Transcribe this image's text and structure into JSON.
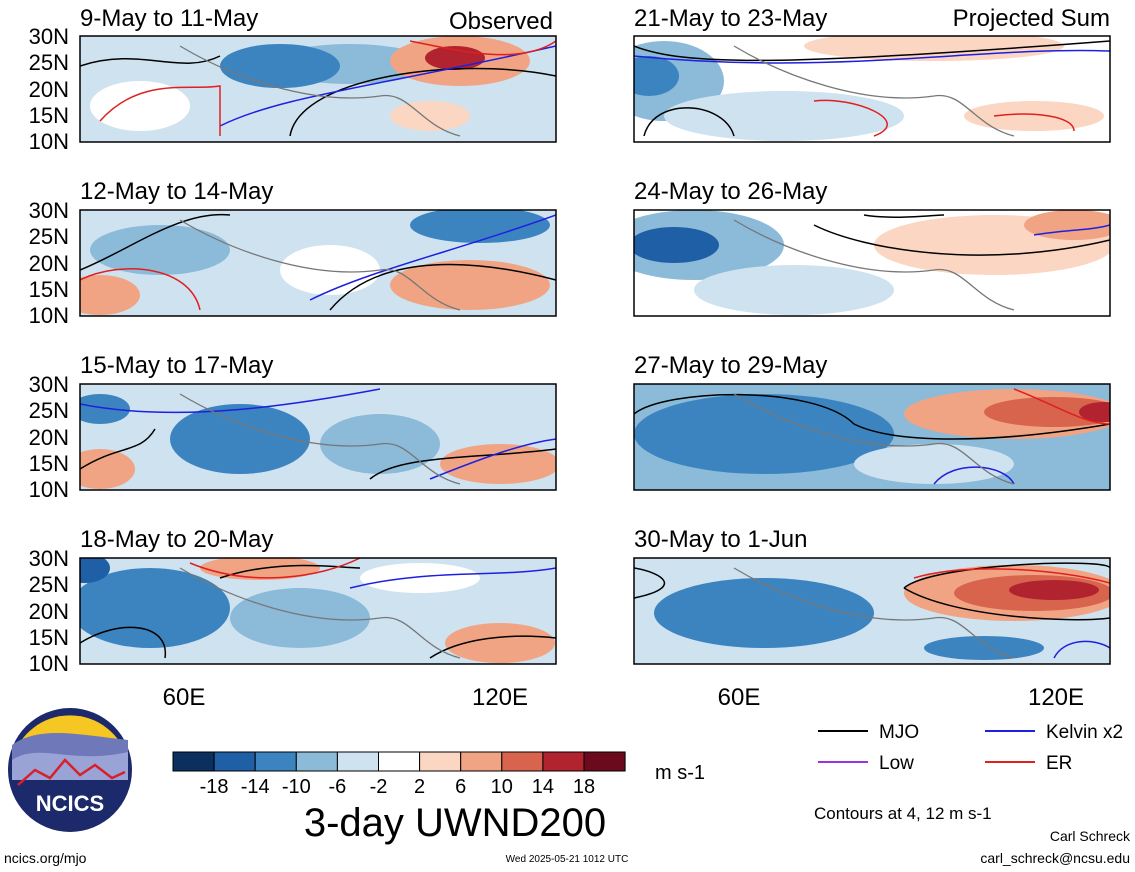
{
  "panel_labels": {
    "observed": "Observed",
    "projected": "Projected Sum"
  },
  "left_panels": [
    {
      "date": "9-May to 11-May"
    },
    {
      "date": "12-May to 14-May"
    },
    {
      "date": "15-May to 17-May"
    },
    {
      "date": "18-May to 20-May"
    }
  ],
  "right_panels": [
    {
      "date": "21-May to 23-May"
    },
    {
      "date": "24-May to 26-May"
    },
    {
      "date": "27-May to 29-May"
    },
    {
      "date": "30-May to 1-Jun"
    }
  ],
  "lat_ticks": [
    "30N",
    "25N",
    "20N",
    "15N",
    "10N"
  ],
  "lon_ticks": [
    "60E",
    "120E"
  ],
  "colorbar": {
    "tick_labels": [
      "-18",
      "-14",
      "-10",
      "-6",
      "-2",
      "2",
      "6",
      "10",
      "14",
      "18"
    ],
    "colors": [
      "#0b2f5e",
      "#1f5fa6",
      "#3c84c0",
      "#8cbad9",
      "#cfe2f0",
      "#ffffff",
      "#fbd6c2",
      "#f1a484",
      "#d9644e",
      "#b0232f",
      "#6b0a1c"
    ],
    "units": "m s-1"
  },
  "title": "3-day UWND200",
  "legend": {
    "items": [
      {
        "label": "MJO",
        "color": "#000000"
      },
      {
        "label": "Kelvin x2",
        "color": "#1f1fe0"
      },
      {
        "label": "Low",
        "color": "#9a33e0"
      },
      {
        "label": "ER",
        "color": "#e01f1f"
      }
    ],
    "note": "Contours at 4, 12 m s-1"
  },
  "logo": {
    "text": "NCICS"
  },
  "footer": {
    "url": "ncics.org/mjo",
    "timestamp": "Wed 2025-05-21 1012 UTC",
    "author": "Carl Schreck",
    "email": "carl_schreck@ncsu.edu"
  }
}
